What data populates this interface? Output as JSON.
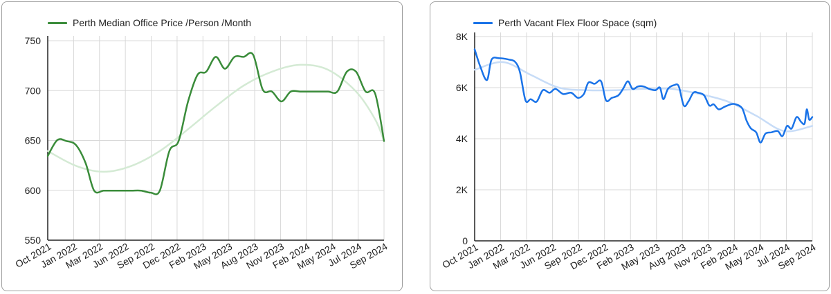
{
  "colors": {
    "left_line": "#3a8c3a",
    "left_trend": "#d4ead4",
    "right_line": "#1a73e8",
    "right_trend": "#c7dcf7",
    "grid": "#d8d8d8",
    "axis": "#222222"
  },
  "chart_data": [
    {
      "type": "line",
      "legend": "Perth Median Office Price /Person /Month",
      "legend_position": "top-left",
      "grid": true,
      "x_ticks": [
        "Oct 2021",
        "Jan 2022",
        "Mar 2022",
        "Jun 2022",
        "Sep 2022",
        "Dec 2022",
        "Feb 2023",
        "May 2023",
        "Aug 2023",
        "Nov 2023",
        "Feb 2024",
        "May 2024",
        "Jul 2024",
        "Sep 2024"
      ],
      "y_ticks": [
        "750",
        "700",
        "650",
        "600",
        "550"
      ],
      "ylim": [
        550,
        752
      ],
      "xlim": [
        "2021-10-01",
        "2024-09-30"
      ],
      "series": [
        {
          "name": "Perth Median Office Price /Person /Month",
          "style": "main",
          "points": [
            [
              "2021-10-01",
              635
            ],
            [
              "2021-11-01",
              651
            ],
            [
              "2021-12-01",
              650
            ],
            [
              "2022-01-01",
              646
            ],
            [
              "2022-02-01",
              628
            ],
            [
              "2022-03-01",
              600
            ],
            [
              "2022-04-01",
              600
            ],
            [
              "2022-05-01",
              600
            ],
            [
              "2022-06-01",
              600
            ],
            [
              "2022-07-01",
              600
            ],
            [
              "2022-08-01",
              600
            ],
            [
              "2022-09-01",
              598
            ],
            [
              "2022-10-01",
              600
            ],
            [
              "2022-11-01",
              640
            ],
            [
              "2022-12-01",
              650
            ],
            [
              "2023-01-01",
              690
            ],
            [
              "2023-02-01",
              717
            ],
            [
              "2023-03-01",
              720
            ],
            [
              "2023-04-01",
              735
            ],
            [
              "2023-05-01",
              723
            ],
            [
              "2023-06-01",
              735
            ],
            [
              "2023-07-01",
              735
            ],
            [
              "2023-08-01",
              737
            ],
            [
              "2023-09-01",
              702
            ],
            [
              "2023-10-01",
              700
            ],
            [
              "2023-11-01",
              690
            ],
            [
              "2023-12-01",
              700
            ],
            [
              "2024-01-01",
              700
            ],
            [
              "2024-02-01",
              700
            ],
            [
              "2024-03-01",
              700
            ],
            [
              "2024-04-01",
              700
            ],
            [
              "2024-05-01",
              700
            ],
            [
              "2024-06-01",
              720
            ],
            [
              "2024-07-01",
              720
            ],
            [
              "2024-08-01",
              700
            ],
            [
              "2024-09-01",
              698
            ],
            [
              "2024-09-30",
              650
            ]
          ]
        },
        {
          "name": "Trend",
          "style": "trend",
          "points": [
            [
              "2021-10-01",
              640
            ],
            [
              "2022-01-01",
              625
            ],
            [
              "2022-04-01",
              619
            ],
            [
              "2022-07-01",
              625
            ],
            [
              "2022-10-01",
              640
            ],
            [
              "2023-01-01",
              662
            ],
            [
              "2023-04-01",
              685
            ],
            [
              "2023-07-01",
              706
            ],
            [
              "2023-10-01",
              720
            ],
            [
              "2024-01-01",
              727
            ],
            [
              "2024-04-01",
              722
            ],
            [
              "2024-07-01",
              700
            ],
            [
              "2024-09-01",
              672
            ],
            [
              "2024-09-30",
              650
            ]
          ]
        }
      ]
    },
    {
      "type": "line",
      "legend": "Perth Vacant Flex Floor Space (sqm)",
      "legend_position": "top-left",
      "grid": true,
      "x_ticks": [
        "Oct 2021",
        "Jan 2022",
        "Mar 2022",
        "Jun 2022",
        "Sep 2022",
        "Dec 2022",
        "Feb 2023",
        "May 2023",
        "Aug 2023",
        "Nov 2023",
        "Feb 2024",
        "May 2024",
        "Jul 2024",
        "Sep 2024"
      ],
      "y_ticks": [
        "8K",
        "6K",
        "4K",
        "2K",
        "0"
      ],
      "ylim": [
        0,
        8000
      ],
      "xlim": [
        "2021-10-01",
        "2024-09-30"
      ],
      "series": [
        {
          "name": "Perth Vacant Flex Floor Space (sqm)",
          "style": "main",
          "points": [
            [
              "2021-10-01",
              7500
            ],
            [
              "2021-10-20",
              6800
            ],
            [
              "2021-11-10",
              6300
            ],
            [
              "2021-11-25",
              7100
            ],
            [
              "2021-12-20",
              7150
            ],
            [
              "2022-01-20",
              7100
            ],
            [
              "2022-02-10",
              7000
            ],
            [
              "2022-02-25",
              6600
            ],
            [
              "2022-03-15",
              5500
            ],
            [
              "2022-04-01",
              5550
            ],
            [
              "2022-04-20",
              5450
            ],
            [
              "2022-05-10",
              5900
            ],
            [
              "2022-06-01",
              5800
            ],
            [
              "2022-06-20",
              5950
            ],
            [
              "2022-07-15",
              5750
            ],
            [
              "2022-08-10",
              5800
            ],
            [
              "2022-09-01",
              5600
            ],
            [
              "2022-09-20",
              5750
            ],
            [
              "2022-10-05",
              6200
            ],
            [
              "2022-10-25",
              6150
            ],
            [
              "2022-11-15",
              6250
            ],
            [
              "2022-12-01",
              5500
            ],
            [
              "2022-12-20",
              5600
            ],
            [
              "2023-01-10",
              5700
            ],
            [
              "2023-01-25",
              5950
            ],
            [
              "2023-02-10",
              6250
            ],
            [
              "2023-02-25",
              5950
            ],
            [
              "2023-03-15",
              6050
            ],
            [
              "2023-04-01",
              6050
            ],
            [
              "2023-04-20",
              5950
            ],
            [
              "2023-05-10",
              5900
            ],
            [
              "2023-05-25",
              6000
            ],
            [
              "2023-06-05",
              5550
            ],
            [
              "2023-06-20",
              5950
            ],
            [
              "2023-07-10",
              6100
            ],
            [
              "2023-07-25",
              6050
            ],
            [
              "2023-08-10",
              5300
            ],
            [
              "2023-08-25",
              5450
            ],
            [
              "2023-09-10",
              5800
            ],
            [
              "2023-09-25",
              5800
            ],
            [
              "2023-10-15",
              5700
            ],
            [
              "2023-11-01",
              5300
            ],
            [
              "2023-11-15",
              5350
            ],
            [
              "2023-12-01",
              5150
            ],
            [
              "2023-12-20",
              5250
            ],
            [
              "2024-01-10",
              5350
            ],
            [
              "2024-01-25",
              5350
            ],
            [
              "2024-02-15",
              5200
            ],
            [
              "2024-03-01",
              4700
            ],
            [
              "2024-03-15",
              4400
            ],
            [
              "2024-04-01",
              4250
            ],
            [
              "2024-04-15",
              3850
            ],
            [
              "2024-05-01",
              4200
            ],
            [
              "2024-05-20",
              4250
            ],
            [
              "2024-06-10",
              4300
            ],
            [
              "2024-06-25",
              4100
            ],
            [
              "2024-07-10",
              4500
            ],
            [
              "2024-07-25",
              4400
            ],
            [
              "2024-08-10",
              4850
            ],
            [
              "2024-08-25",
              4650
            ],
            [
              "2024-09-05",
              4600
            ],
            [
              "2024-09-12",
              5150
            ],
            [
              "2024-09-20",
              4750
            ],
            [
              "2024-09-30",
              4850
            ]
          ]
        },
        {
          "name": "Trend",
          "style": "trend",
          "points": [
            [
              "2021-10-01",
              6700
            ],
            [
              "2022-01-01",
              7000
            ],
            [
              "2022-04-01",
              6500
            ],
            [
              "2022-07-01",
              6000
            ],
            [
              "2022-10-01",
              5900
            ],
            [
              "2023-01-01",
              5900
            ],
            [
              "2023-04-01",
              5950
            ],
            [
              "2023-07-01",
              5950
            ],
            [
              "2023-10-01",
              5750
            ],
            [
              "2024-01-01",
              5450
            ],
            [
              "2024-04-01",
              4900
            ],
            [
              "2024-07-01",
              4300
            ],
            [
              "2024-09-30",
              4500
            ]
          ]
        }
      ]
    }
  ]
}
